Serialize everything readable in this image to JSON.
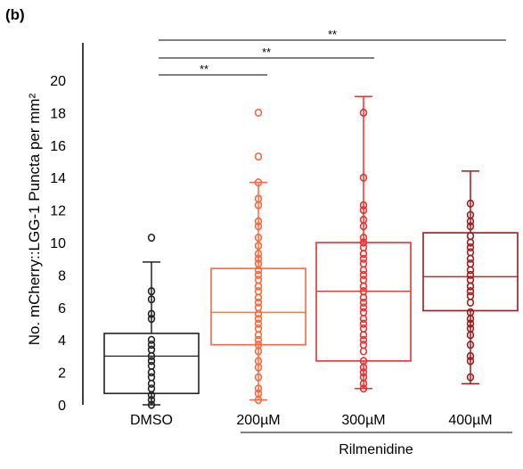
{
  "chart_data": {
    "panel_label": "(b)",
    "type": "box",
    "ylabel": "No. mCherry::LGG-1 Puncta per mm²",
    "ylim": [
      0,
      20
    ],
    "yticks": [
      0,
      2,
      4,
      6,
      8,
      10,
      12,
      14,
      16,
      18,
      20
    ],
    "group_label": "Rilmenidine",
    "significance_label": "**",
    "categories": [
      "DMSO",
      "200µM",
      "300µM",
      "400µM"
    ],
    "series": [
      {
        "category": "DMSO",
        "color": "#222222",
        "whisker_low": 0.0,
        "q1": 0.7,
        "median": 3.0,
        "q3": 4.4,
        "whisker_high": 8.8,
        "points": [
          10.3,
          7.0,
          6.5,
          5.6,
          5.3,
          4.0,
          3.7,
          3.4,
          3.0,
          2.7,
          2.4,
          2.0,
          1.7,
          1.3,
          1.0,
          0.6,
          0.3,
          0.0
        ]
      },
      {
        "category": "200µM",
        "color": "#f26a3d",
        "whisker_low": 0.3,
        "q1": 3.7,
        "median": 5.7,
        "q3": 8.4,
        "whisker_high": 13.7,
        "points": [
          18.0,
          15.3,
          13.7,
          12.7,
          12.3,
          11.3,
          11.0,
          10.3,
          9.8,
          9.3,
          9.0,
          8.7,
          8.3,
          8.0,
          7.7,
          7.3,
          7.0,
          6.6,
          6.3,
          6.0,
          5.6,
          5.3,
          5.0,
          4.7,
          4.3,
          4.0,
          3.7,
          3.3,
          2.7,
          2.3,
          1.7,
          1.0,
          0.7,
          0.3
        ]
      },
      {
        "category": "300µM",
        "color": "#e63232",
        "whisker_low": 1.0,
        "q1": 2.7,
        "median": 7.0,
        "q3": 10.0,
        "whisker_high": 19.0,
        "points": [
          18.0,
          14.0,
          12.3,
          12.0,
          11.4,
          11.0,
          10.3,
          10.0,
          9.7,
          9.3,
          9.0,
          8.7,
          8.3,
          8.0,
          7.7,
          7.3,
          7.0,
          6.6,
          6.3,
          6.0,
          5.7,
          5.3,
          5.0,
          4.7,
          4.3,
          4.0,
          3.7,
          3.3,
          2.7,
          2.3,
          2.0,
          1.7,
          1.3,
          1.0
        ]
      },
      {
        "category": "400µM",
        "color": "#9b1b1b",
        "whisker_low": 1.3,
        "q1": 5.8,
        "median": 7.9,
        "q3": 10.6,
        "whisker_high": 14.4,
        "points": [
          12.4,
          11.7,
          11.3,
          11.0,
          10.4,
          10.0,
          9.7,
          9.4,
          9.0,
          8.7,
          8.3,
          8.0,
          7.7,
          7.3,
          7.0,
          6.7,
          6.3,
          5.7,
          5.3,
          5.0,
          4.7,
          4.3,
          3.7,
          3.0,
          2.7,
          1.7
        ]
      }
    ],
    "significance": [
      {
        "from": "DMSO",
        "to": "200µM",
        "label": "**"
      },
      {
        "from": "DMSO",
        "to": "300µM",
        "label": "**"
      },
      {
        "from": "DMSO",
        "to": "400µM",
        "label": "**"
      }
    ]
  }
}
